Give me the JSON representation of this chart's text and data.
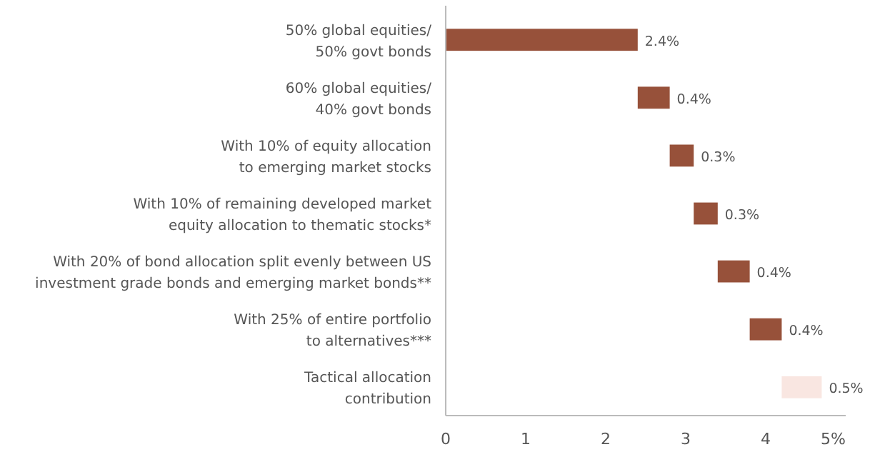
{
  "chart_data": {
    "type": "bar",
    "orientation": "horizontal",
    "categories": [
      "50% global equities/\n50% govt bonds",
      "60% global equities/\n40% govt bonds",
      "With 10% of equity allocation\nto emerging market stocks",
      "With 10% of remaining developed market\nequity allocation to thematic stocks*",
      "With 20% of bond allocation split evenly between US\ninvestment grade bonds and emerging market bonds**",
      "With 25% of entire portfolio\nto alternatives***",
      "Tactical allocation\ncontribution"
    ],
    "values": [
      2.4,
      0.4,
      0.3,
      0.3,
      0.4,
      0.4,
      0.5
    ],
    "base": [
      0,
      2.4,
      2.8,
      3.1,
      3.4,
      3.8,
      4.2
    ],
    "colors": [
      "#97513a",
      "#97513a",
      "#97513a",
      "#97513a",
      "#97513a",
      "#97513a",
      "#f9e6e1"
    ],
    "value_labels": [
      "2.4%",
      "0.4%",
      "0.3%",
      "0.3%",
      "0.4%",
      "0.4%",
      "0.5%"
    ],
    "xlim": [
      0,
      5
    ],
    "xticks": [
      0,
      1,
      2,
      3,
      4,
      {
        "value": 5,
        "label": "5%"
      }
    ],
    "grid": false
  }
}
